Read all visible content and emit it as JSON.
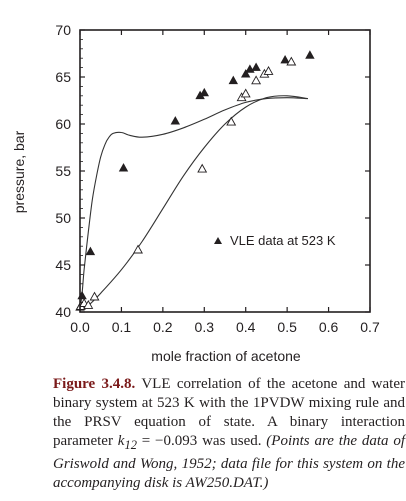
{
  "chart_data": {
    "type": "scatter",
    "title": "",
    "xlabel": "mole fraction of acetone",
    "ylabel": "pressure, bar",
    "xlim": [
      0.0,
      0.7
    ],
    "ylim": [
      40,
      70
    ],
    "xticks": [
      "0.0",
      "0.1",
      "0.2",
      "0.3",
      "0.4",
      "0.5",
      "0.6",
      "0.7"
    ],
    "yticks": [
      "40",
      "45",
      "50",
      "55",
      "60",
      "65",
      "70"
    ],
    "legend": {
      "text": "VLE data at 523 K",
      "position": "right"
    },
    "series": [
      {
        "name": "VLE data at 523 K",
        "marker": "filled-triangle",
        "x": [
          0.0,
          0.005,
          0.025,
          0.105,
          0.23,
          0.29,
          0.3,
          0.37,
          0.4,
          0.41,
          0.425,
          0.495,
          0.555
        ],
        "y": [
          40.5,
          41.7,
          46.4,
          55.3,
          60.3,
          63.0,
          63.3,
          64.6,
          65.3,
          65.8,
          66.0,
          66.8,
          67.3
        ]
      },
      {
        "marker": "open-triangle",
        "x": [
          0.002,
          0.01,
          0.02,
          0.035,
          0.14,
          0.295,
          0.365,
          0.39,
          0.4,
          0.425,
          0.445,
          0.455,
          0.51
        ],
        "y": [
          40.6,
          40.9,
          40.7,
          41.6,
          46.6,
          55.2,
          60.2,
          62.8,
          63.2,
          64.6,
          65.3,
          65.6,
          66.6
        ]
      },
      {
        "marker": "line",
        "x": [
          0.0,
          0.005,
          0.01,
          0.02,
          0.03,
          0.04,
          0.05,
          0.06,
          0.07,
          0.08,
          0.1,
          0.12,
          0.15,
          0.2,
          0.25,
          0.3,
          0.35,
          0.4,
          0.45,
          0.5,
          0.55
        ],
        "y": [
          40.2,
          42.0,
          44.5,
          48.5,
          52.0,
          54.5,
          56.5,
          57.8,
          58.6,
          59.0,
          59.1,
          58.8,
          58.6,
          58.9,
          59.6,
          60.5,
          61.5,
          62.3,
          62.7,
          62.8,
          62.7
        ]
      },
      {
        "marker": "line",
        "x": [
          0.0,
          0.02,
          0.05,
          0.1,
          0.15,
          0.2,
          0.25,
          0.3,
          0.35,
          0.4,
          0.45,
          0.5,
          0.55
        ],
        "y": [
          40.2,
          40.7,
          42.0,
          44.5,
          47.5,
          51.0,
          54.5,
          57.5,
          60.0,
          61.8,
          62.8,
          63.0,
          62.7
        ]
      }
    ]
  },
  "caption": {
    "label": "Figure 3.4.8.",
    "text_1": " VLE correlation of the acetone and water binary system at 523 K with the 1PVDW mixing rule and the PRSV equation of state. A binary interaction parameter ",
    "param": "k",
    "param_sub": "12",
    "param_value": " = −0.093",
    "text_2": " was used. ",
    "text_3": "(Points are the data of Griswold and Wong, 1952; data file for this system on the accompanying disk is AW250.DAT.)"
  },
  "colors": {
    "ink": "#231f20",
    "caption_label": "#7a1a1a",
    "curve": "#333333"
  }
}
